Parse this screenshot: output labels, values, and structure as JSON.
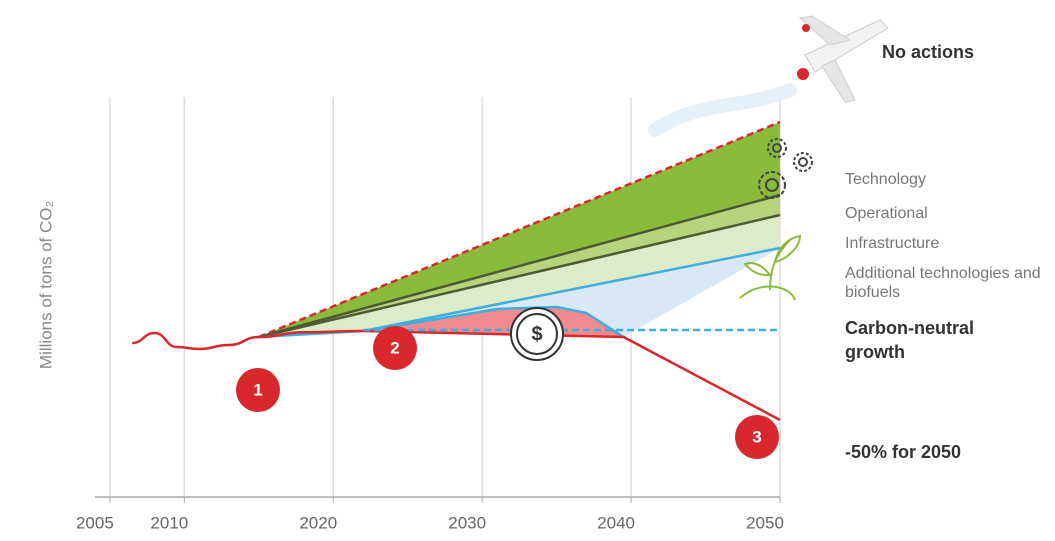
{
  "chart_data": {
    "type": "area",
    "ylabel": "Millions of tons of CO₂",
    "xlim": [
      2004,
      2050
    ],
    "xticks": [
      2005,
      2010,
      2020,
      2030,
      2040,
      2050
    ],
    "ylim": [
      0,
      100
    ],
    "grid": true,
    "history": {
      "x": [
        2006.5,
        2008,
        2009.5,
        2011,
        2013,
        2015,
        2018,
        2022
      ],
      "values": [
        38.5,
        41,
        37.5,
        37,
        38,
        40,
        41.2,
        41.5
      ],
      "line_color": "#d9272e"
    },
    "series": [
      {
        "name": "No actions",
        "x": [
          2015,
          2050
        ],
        "values": [
          40,
          93.75
        ],
        "line_color": "#d9272e",
        "dash": true
      },
      {
        "name": "Technology",
        "x": [
          2015,
          2050
        ],
        "values": [
          40,
          75.5
        ],
        "color": "#8bbb3b",
        "line_color": "#4d5a33"
      },
      {
        "name": "Operational",
        "x": [
          2015,
          2050
        ],
        "values": [
          40,
          70.5
        ],
        "color": "#b7d47d",
        "line_color": "#4d5a33"
      },
      {
        "name": "Infrastructure",
        "x": [
          2015,
          2022,
          2050
        ],
        "values": [
          40,
          41.5,
          62.25
        ],
        "color": "#deebc8",
        "line_color": "#3eaee0"
      },
      {
        "name": "Additional technologies and biofuels",
        "x": [
          2022,
          2027,
          2031,
          2035,
          2037,
          2039.5
        ],
        "values": [
          41.5,
          44.5,
          47,
          47.5,
          46,
          40
        ],
        "color": "#d9e8f5",
        "line_color": "#3eaee0"
      },
      {
        "name": "-50% for 2050",
        "x": [
          2022,
          2039.5,
          2050
        ],
        "values": [
          41.5,
          40,
          19.25
        ],
        "color": "#f08a8f",
        "line_color": "#d9272e"
      },
      {
        "name": "Carbon-neutral growth",
        "x": [
          2022,
          2050
        ],
        "values": [
          41.75,
          41.75
        ],
        "line_color": "#3eaee0",
        "dash": true
      }
    ],
    "markers": [
      "1",
      "2",
      "3"
    ],
    "coin_symbol": "$"
  }
}
